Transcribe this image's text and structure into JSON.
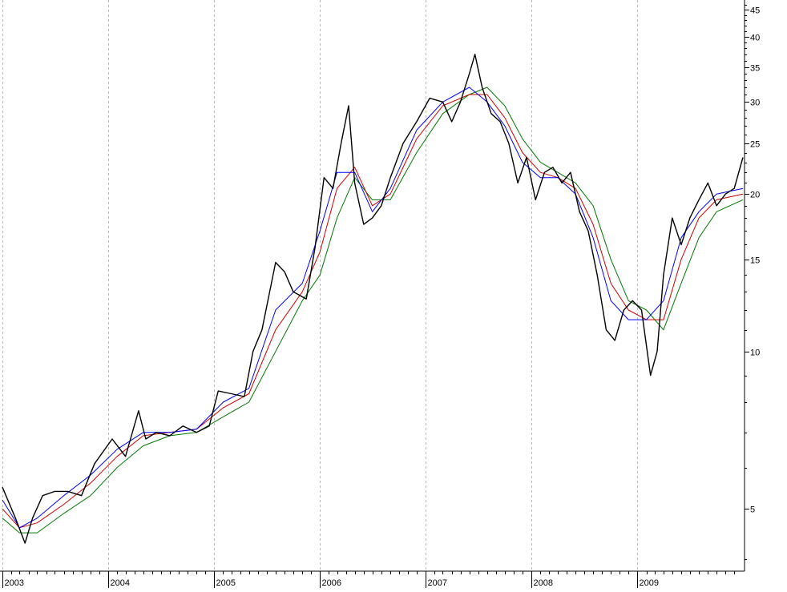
{
  "chart_data": {
    "type": "line",
    "title": "",
    "xlabel": "",
    "ylabel": "",
    "y_scale": "log",
    "ylim": [
      3.8,
      47
    ],
    "xlim": [
      "2003-01-01",
      "2009-12-31"
    ],
    "grid": {
      "vertical": true,
      "horizontal": false
    },
    "x_tick_labels": [
      "2003",
      "2004",
      "2005",
      "2006",
      "2007",
      "2008",
      "2009"
    ],
    "x_tick_dates": [
      "2003-01-01",
      "2004-01-01",
      "2005-01-01",
      "2006-01-01",
      "2007-01-01",
      "2008-01-01",
      "2009-01-01"
    ],
    "y_tick_values": [
      5,
      10,
      15,
      20,
      25,
      30,
      35,
      40,
      45
    ],
    "y_tick_labels": [
      "5",
      "10",
      "15",
      "20",
      "25",
      "30",
      "35",
      "40",
      "45"
    ],
    "series": [
      {
        "role": "price",
        "color": "#000000",
        "x": [
          "2003-01-01",
          "2003-02-15",
          "2003-03-20",
          "2003-04-15",
          "2003-05-20",
          "2003-07-01",
          "2003-08-15",
          "2003-10-01",
          "2003-11-15",
          "2004-01-15",
          "2004-03-01",
          "2004-04-15",
          "2004-05-10",
          "2004-06-15",
          "2004-08-01",
          "2004-09-15",
          "2004-11-01",
          "2004-12-15",
          "2005-01-15",
          "2005-03-01",
          "2005-04-15",
          "2005-05-15",
          "2005-06-15",
          "2005-08-01",
          "2005-09-01",
          "2005-10-01",
          "2005-11-15",
          "2005-12-15",
          "2006-01-15",
          "2006-02-15",
          "2006-03-15",
          "2006-04-10",
          "2006-05-01",
          "2006-06-01",
          "2006-07-01",
          "2006-08-01",
          "2006-09-01",
          "2006-10-15",
          "2006-12-01",
          "2007-01-15",
          "2007-03-01",
          "2007-04-01",
          "2007-05-01",
          "2007-06-01",
          "2007-06-20",
          "2007-07-15",
          "2007-08-15",
          "2007-09-15",
          "2007-10-15",
          "2007-11-15",
          "2007-12-15",
          "2008-01-15",
          "2008-02-15",
          "2008-03-15",
          "2008-04-15",
          "2008-05-15",
          "2008-06-15",
          "2008-07-15",
          "2008-08-15",
          "2008-09-15",
          "2008-10-15",
          "2008-11-15",
          "2008-12-15",
          "2009-01-15",
          "2009-02-15",
          "2009-03-10",
          "2009-04-01",
          "2009-05-01",
          "2009-06-01",
          "2009-07-01",
          "2009-08-01",
          "2009-09-01",
          "2009-10-01",
          "2009-11-01",
          "2009-12-01",
          "2009-12-31"
        ],
        "values": [
          5.5,
          4.8,
          4.3,
          4.8,
          5.3,
          5.4,
          5.4,
          5.3,
          6.1,
          6.8,
          6.3,
          7.7,
          6.8,
          7.0,
          6.9,
          7.2,
          7.0,
          7.2,
          8.4,
          8.3,
          8.2,
          10.0,
          11.0,
          14.8,
          14.2,
          13.0,
          12.6,
          15.8,
          21.5,
          20.5,
          25.0,
          29.5,
          21.0,
          17.5,
          18.0,
          19.0,
          21.5,
          25.0,
          27.5,
          30.5,
          30.0,
          27.5,
          30.0,
          34.0,
          37.0,
          32.0,
          28.5,
          27.5,
          25.0,
          21.0,
          23.5,
          19.5,
          22.0,
          22.5,
          21.0,
          22.0,
          18.5,
          17.0,
          14.0,
          11.0,
          10.5,
          12.0,
          12.5,
          12.0,
          9.0,
          10.0,
          14.0,
          18.0,
          16.0,
          18.0,
          19.5,
          21.0,
          19.0,
          20.0,
          20.5,
          23.5
        ]
      },
      {
        "role": "moving-average-short",
        "color": "#0000ff",
        "x": [
          "2003-01-01",
          "2003-03-01",
          "2003-05-01",
          "2003-08-01",
          "2003-11-01",
          "2004-02-01",
          "2004-05-01",
          "2004-08-01",
          "2004-11-01",
          "2005-02-01",
          "2005-05-01",
          "2005-08-01",
          "2005-11-01",
          "2006-01-01",
          "2006-03-01",
          "2006-05-01",
          "2006-07-01",
          "2006-09-01",
          "2006-12-01",
          "2007-03-01",
          "2007-06-01",
          "2007-08-01",
          "2007-10-01",
          "2007-12-01",
          "2008-02-01",
          "2008-04-01",
          "2008-06-01",
          "2008-08-01",
          "2008-10-01",
          "2008-12-01",
          "2009-02-01",
          "2009-04-01",
          "2009-06-01",
          "2009-08-01",
          "2009-10-01",
          "2009-12-31"
        ],
        "values": [
          5.2,
          4.6,
          4.8,
          5.3,
          5.8,
          6.5,
          7.0,
          7.0,
          7.1,
          8.0,
          8.5,
          12.0,
          13.5,
          17.0,
          22.0,
          22.0,
          18.5,
          20.5,
          26.5,
          30.0,
          32.0,
          30.0,
          27.0,
          23.0,
          21.5,
          21.5,
          20.0,
          16.5,
          12.5,
          11.5,
          11.5,
          12.5,
          16.5,
          18.5,
          20.0,
          20.5
        ]
      },
      {
        "role": "moving-average-medium",
        "color": "#cc0000",
        "x": [
          "2003-01-01",
          "2003-03-01",
          "2003-05-01",
          "2003-08-01",
          "2003-11-01",
          "2004-02-01",
          "2004-05-01",
          "2004-08-01",
          "2004-11-01",
          "2005-02-01",
          "2005-05-01",
          "2005-08-01",
          "2005-11-01",
          "2006-01-01",
          "2006-03-01",
          "2006-05-01",
          "2006-07-01",
          "2006-09-01",
          "2006-12-01",
          "2007-03-01",
          "2007-06-01",
          "2007-08-01",
          "2007-10-01",
          "2007-12-01",
          "2008-02-01",
          "2008-04-01",
          "2008-06-01",
          "2008-08-01",
          "2008-10-01",
          "2008-12-01",
          "2009-02-01",
          "2009-04-01",
          "2009-06-01",
          "2009-08-01",
          "2009-10-01",
          "2009-12-31"
        ],
        "values": [
          5.0,
          4.6,
          4.7,
          5.1,
          5.6,
          6.3,
          6.9,
          7.0,
          7.1,
          7.8,
          8.3,
          11.0,
          13.0,
          15.5,
          20.5,
          22.5,
          19.0,
          20.0,
          25.5,
          29.5,
          31.0,
          31.0,
          28.0,
          24.0,
          22.0,
          21.5,
          20.5,
          17.5,
          13.5,
          12.0,
          11.5,
          11.5,
          15.0,
          18.0,
          19.5,
          20.0
        ]
      },
      {
        "role": "moving-average-long",
        "color": "#007700",
        "x": [
          "2003-01-01",
          "2003-03-01",
          "2003-05-01",
          "2003-08-01",
          "2003-11-01",
          "2004-02-01",
          "2004-05-01",
          "2004-08-01",
          "2004-11-01",
          "2005-02-01",
          "2005-05-01",
          "2005-08-01",
          "2005-11-01",
          "2006-01-01",
          "2006-03-01",
          "2006-05-01",
          "2006-07-01",
          "2006-09-01",
          "2006-12-01",
          "2007-03-01",
          "2007-06-01",
          "2007-08-01",
          "2007-10-01",
          "2007-12-01",
          "2008-02-01",
          "2008-04-01",
          "2008-06-01",
          "2008-08-01",
          "2008-10-01",
          "2008-12-01",
          "2009-02-01",
          "2009-04-01",
          "2009-06-01",
          "2009-08-01",
          "2009-10-01",
          "2009-12-31"
        ],
        "values": [
          4.8,
          4.5,
          4.5,
          4.9,
          5.3,
          6.0,
          6.6,
          6.9,
          7.0,
          7.5,
          8.0,
          10.0,
          12.5,
          14.0,
          18.0,
          21.5,
          19.5,
          19.5,
          24.0,
          28.5,
          31.0,
          32.0,
          29.5,
          25.5,
          23.0,
          22.0,
          21.0,
          19.0,
          15.0,
          12.5,
          12.0,
          11.0,
          13.5,
          16.5,
          18.5,
          19.5
        ]
      }
    ]
  }
}
